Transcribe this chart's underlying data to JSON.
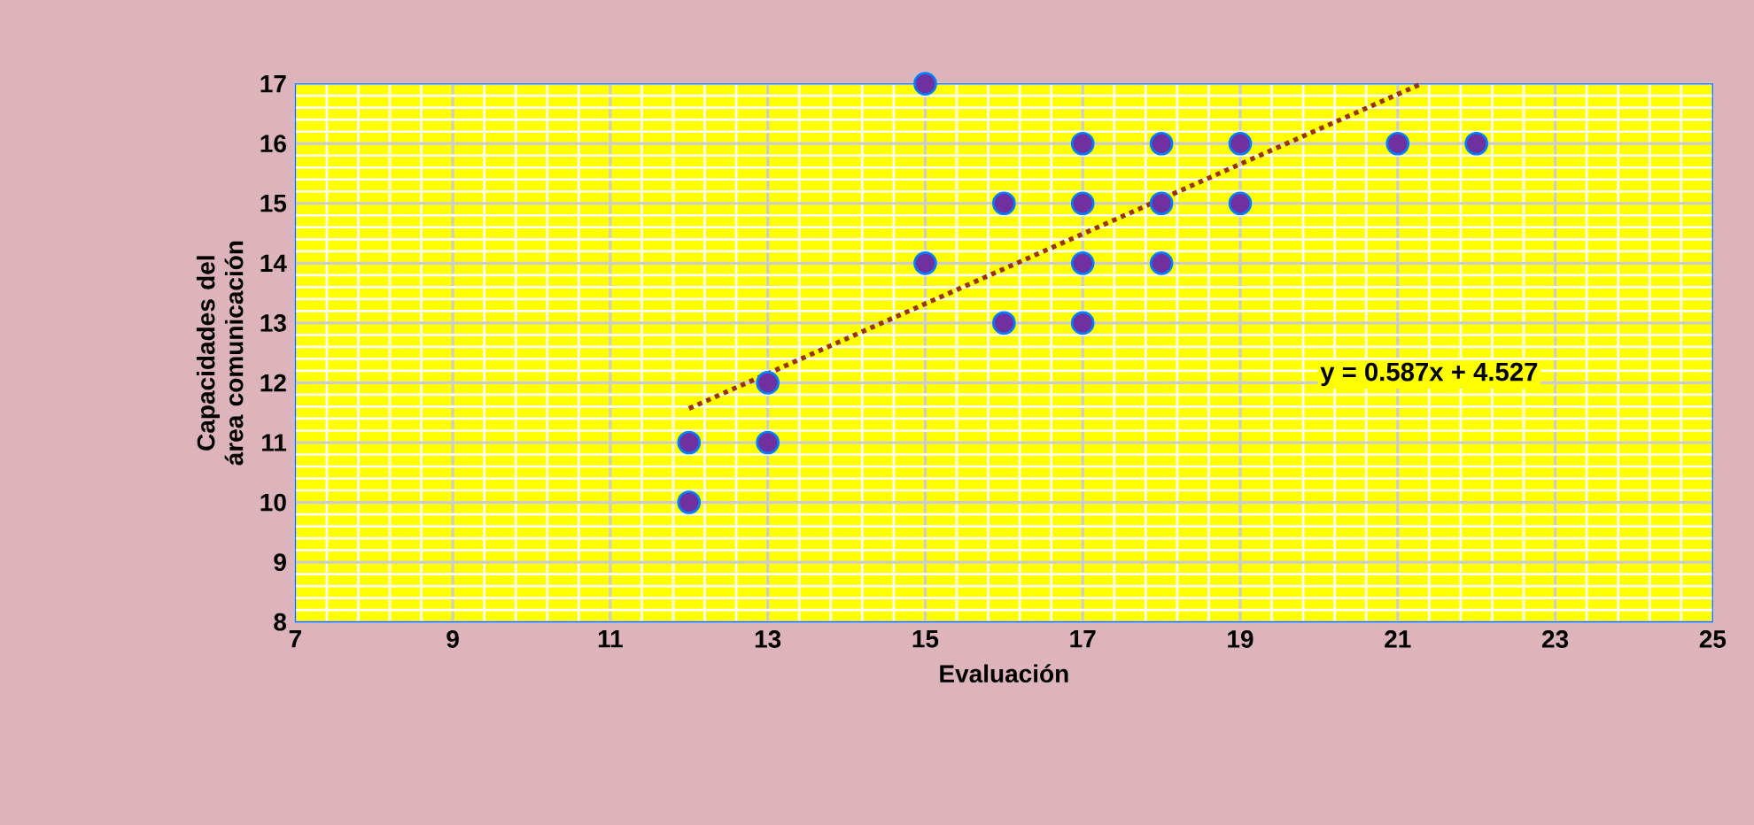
{
  "chart_data": {
    "type": "scatter",
    "xlabel": "Evaluación",
    "ylabel": "Capacidades del área comunicación",
    "xlim": [
      7,
      25
    ],
    "xticks": [
      7,
      9,
      11,
      13,
      15,
      17,
      19,
      21,
      23,
      25
    ],
    "ylim": [
      8,
      17
    ],
    "yticks": [
      8,
      9,
      10,
      11,
      12,
      13,
      14,
      15,
      16,
      17
    ],
    "grid": true,
    "series": [
      {
        "marker": "circle",
        "color": "#7030a0",
        "x": [
          12,
          12,
          13,
          13,
          15,
          15,
          16,
          16,
          17,
          17,
          17,
          17,
          18,
          18,
          18,
          19,
          19,
          21,
          22
        ],
        "values": [
          10,
          11,
          11,
          12,
          17,
          14,
          15,
          13,
          16,
          15,
          14,
          13,
          16,
          15,
          14,
          16,
          15,
          16,
          16
        ]
      },
      {
        "type": "line",
        "line_style": "dotted",
        "color": "#993300",
        "x": [
          12,
          21.3
        ],
        "values": [
          11.57,
          17
        ]
      }
    ],
    "annotations": [
      "y = 0.587x + 4.527"
    ]
  }
}
